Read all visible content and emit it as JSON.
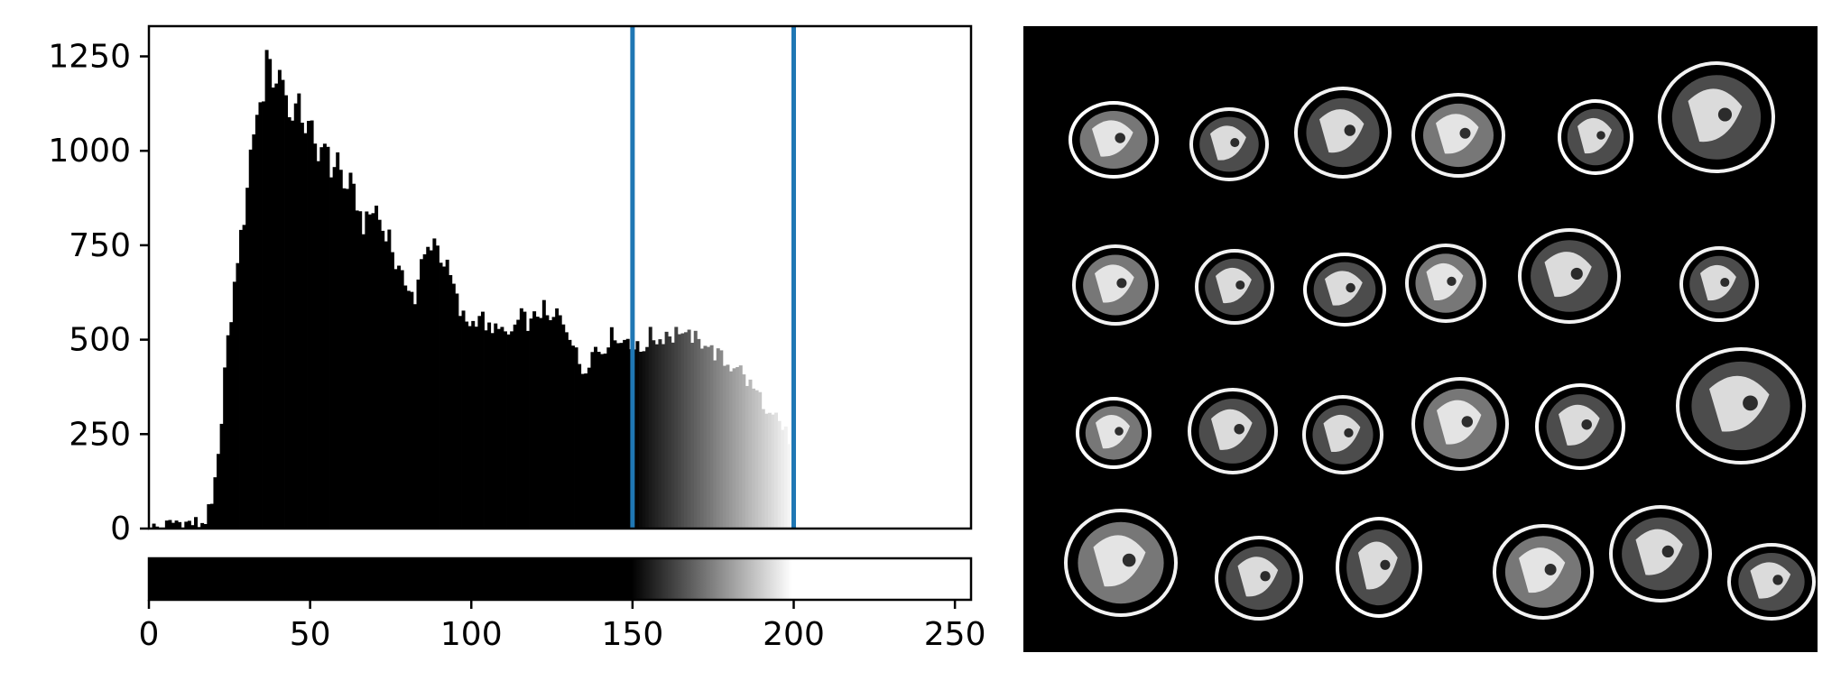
{
  "chart_data": [
    {
      "type": "bar",
      "title": "",
      "xlabel": "",
      "ylabel": "",
      "xlim": [
        0,
        255
      ],
      "ylim": [
        0,
        1330
      ],
      "grid": false,
      "yticks": [
        0,
        250,
        500,
        750,
        1000,
        1250
      ],
      "ytick_labels": [
        "0",
        "250",
        "500",
        "750",
        "1000",
        "1250"
      ],
      "bin_width": 1,
      "histogram_control_points": [
        [
          0,
          0
        ],
        [
          5,
          5
        ],
        [
          8,
          20
        ],
        [
          10,
          12
        ],
        [
          12,
          15
        ],
        [
          15,
          12
        ],
        [
          17,
          25
        ],
        [
          19,
          55
        ],
        [
          21,
          180
        ],
        [
          23,
          420
        ],
        [
          25,
          560
        ],
        [
          27,
          720
        ],
        [
          29,
          820
        ],
        [
          31,
          1000
        ],
        [
          33,
          1100
        ],
        [
          35,
          1150
        ],
        [
          36,
          1260
        ],
        [
          38,
          1180
        ],
        [
          40,
          1200
        ],
        [
          42,
          1140
        ],
        [
          44,
          1080
        ],
        [
          46,
          1140
        ],
        [
          48,
          1050
        ],
        [
          50,
          1060
        ],
        [
          52,
          980
        ],
        [
          54,
          1040
        ],
        [
          56,
          940
        ],
        [
          58,
          990
        ],
        [
          60,
          900
        ],
        [
          62,
          920
        ],
        [
          64,
          860
        ],
        [
          66,
          800
        ],
        [
          68,
          830
        ],
        [
          70,
          850
        ],
        [
          72,
          790
        ],
        [
          74,
          780
        ],
        [
          76,
          700
        ],
        [
          78,
          660
        ],
        [
          80,
          650
        ],
        [
          82,
          600
        ],
        [
          84,
          700
        ],
        [
          86,
          740
        ],
        [
          88,
          770
        ],
        [
          90,
          720
        ],
        [
          92,
          690
        ],
        [
          94,
          640
        ],
        [
          96,
          570
        ],
        [
          98,
          550
        ],
        [
          100,
          545
        ],
        [
          102,
          570
        ],
        [
          104,
          540
        ],
        [
          106,
          510
        ],
        [
          108,
          550
        ],
        [
          110,
          500
        ],
        [
          112,
          520
        ],
        [
          115,
          560
        ],
        [
          118,
          540
        ],
        [
          120,
          570
        ],
        [
          122,
          580
        ],
        [
          124,
          540
        ],
        [
          126,
          570
        ],
        [
          128,
          550
        ],
        [
          130,
          520
        ],
        [
          132,
          460
        ],
        [
          134,
          420
        ],
        [
          136,
          450
        ],
        [
          138,
          480
        ],
        [
          140,
          470
        ],
        [
          142,
          500
        ],
        [
          144,
          520
        ],
        [
          146,
          490
        ],
        [
          148,
          510
        ],
        [
          150,
          480
        ],
        [
          152,
          470
        ],
        [
          155,
          510
        ],
        [
          158,
          500
        ],
        [
          160,
          520
        ],
        [
          162,
          510
        ],
        [
          164,
          530
        ],
        [
          166,
          500
        ],
        [
          168,
          510
        ],
        [
          170,
          490
        ],
        [
          172,
          500
        ],
        [
          174,
          470
        ],
        [
          176,
          460
        ],
        [
          178,
          440
        ],
        [
          180,
          430
        ],
        [
          182,
          440
        ],
        [
          184,
          400
        ],
        [
          186,
          380
        ],
        [
          188,
          360
        ],
        [
          190,
          340
        ],
        [
          191,
          290
        ],
        [
          192,
          300
        ],
        [
          193,
          280
        ],
        [
          194,
          290
        ],
        [
          195,
          270
        ],
        [
          196,
          250
        ],
        [
          197,
          255
        ],
        [
          198,
          220
        ],
        [
          199,
          240
        ],
        [
          200,
          0
        ],
        [
          255,
          0
        ]
      ],
      "shading_range": [
        150,
        200
      ],
      "vlines": [
        {
          "x": 150,
          "color": "#1f77b4"
        },
        {
          "x": 200,
          "color": "#1f77b4"
        }
      ],
      "colors": {
        "bars": "#000000",
        "vline": "#1f77b4"
      }
    },
    {
      "type": "colorbar",
      "colormap": "gray",
      "clip_range": [
        150,
        200
      ],
      "xlim": [
        0,
        255
      ],
      "xticks": [
        0,
        50,
        100,
        150,
        200,
        250
      ],
      "xtick_labels": [
        "0",
        "50",
        "100",
        "150",
        "200",
        "250"
      ]
    }
  ],
  "image_panel": {
    "description_icon": "coins-image",
    "background": "#000000"
  }
}
